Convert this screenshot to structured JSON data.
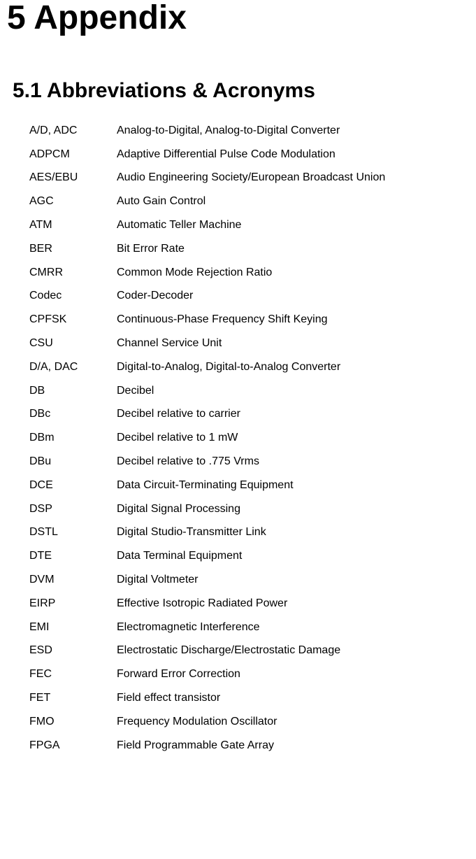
{
  "chapter": "5 Appendix",
  "section": "5.1  Abbreviations & Acronyms",
  "items": [
    {
      "abbr": "A/D, ADC",
      "def": "Analog-to-Digital, Analog-to-Digital Converter"
    },
    {
      "abbr": "ADPCM",
      "def": "Adaptive Differential Pulse Code Modulation"
    },
    {
      "abbr": "AES/EBU",
      "def": "Audio Engineering Society/European Broadcast Union"
    },
    {
      "abbr": "AGC",
      "def": "Auto Gain Control"
    },
    {
      "abbr": "ATM",
      "def": "Automatic Teller Machine"
    },
    {
      "abbr": "BER",
      "def": "Bit Error Rate"
    },
    {
      "abbr": "CMRR",
      "def": "Common Mode Rejection Ratio"
    },
    {
      "abbr": "Codec",
      "def": "Coder-Decoder"
    },
    {
      "abbr": "CPFSK",
      "def": "Continuous-Phase Frequency Shift Keying"
    },
    {
      "abbr": "CSU",
      "def": "Channel Service Unit"
    },
    {
      "abbr": "D/A, DAC",
      "def": "Digital-to-Analog, Digital-to-Analog Converter"
    },
    {
      "abbr": "DB",
      "def": "Decibel"
    },
    {
      "abbr": "DBc",
      "def": "Decibel relative to carrier"
    },
    {
      "abbr": "DBm",
      "def": "Decibel relative to 1 mW"
    },
    {
      "abbr": "DBu",
      "def": "Decibel relative to .775 Vrms"
    },
    {
      "abbr": "DCE",
      "def": "Data Circuit-Terminating Equipment"
    },
    {
      "abbr": "DSP",
      "def": "Digital Signal Processing"
    },
    {
      "abbr": "DSTL",
      "def": "Digital Studio-Transmitter Link"
    },
    {
      "abbr": "DTE",
      "def": "Data Terminal Equipment"
    },
    {
      "abbr": "DVM",
      "def": "Digital Voltmeter"
    },
    {
      "abbr": "EIRP",
      "def": "Effective Isotropic Radiated Power"
    },
    {
      "abbr": "EMI",
      "def": "Electromagnetic Interference"
    },
    {
      "abbr": "ESD",
      "def": "Electrostatic Discharge/Electrostatic Damage"
    },
    {
      "abbr": "FEC",
      "def": "Forward Error Correction"
    },
    {
      "abbr": "FET",
      "def": "Field effect transistor"
    },
    {
      "abbr": "FMO",
      "def": "Frequency Modulation Oscillator"
    },
    {
      "abbr": "FPGA",
      "def": "Field Programmable Gate Array"
    }
  ]
}
